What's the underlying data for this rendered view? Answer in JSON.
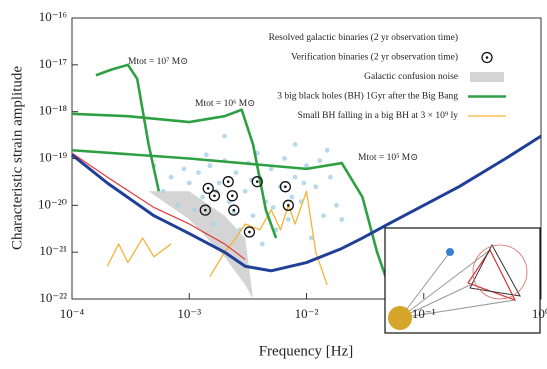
{
  "chart_data": {
    "type": "line",
    "xscale": "log",
    "yscale": "log",
    "xlabel": "Frequency [Hz]",
    "ylabel": "Characteristic strain amplitude",
    "xlim": [
      0.0001,
      1
    ],
    "ylim": [
      1e-22,
      1e-16
    ],
    "xticks": [
      {
        "value": 0.0001,
        "label": "10⁻⁴"
      },
      {
        "value": 0.001,
        "label": "10⁻³"
      },
      {
        "value": 0.01,
        "label": "10⁻²"
      },
      {
        "value": 0.1,
        "label": "10⁻¹"
      },
      {
        "value": 1,
        "label": "10⁰"
      }
    ],
    "yticks": [
      {
        "value": 1e-22,
        "label": "10⁻²²"
      },
      {
        "value": 1e-21,
        "label": "10⁻²¹"
      },
      {
        "value": 1e-20,
        "label": "10⁻²⁰"
      },
      {
        "value": 1e-19,
        "label": "10⁻¹⁹"
      },
      {
        "value": 1e-18,
        "label": "10⁻¹⁸"
      },
      {
        "value": 1e-17,
        "label": "10⁻¹⁷"
      },
      {
        "value": 1e-16,
        "label": "10⁻¹⁶"
      }
    ],
    "legend": "top-right",
    "series": [
      {
        "name": "Resolved galactic binaries (2 yr observation time)",
        "style": "scatter",
        "color": "#a9d3e6",
        "x": [
          0.0006,
          0.0007,
          0.0008,
          0.0009,
          0.001,
          0.0011,
          0.0012,
          0.0013,
          0.0015,
          0.0016,
          0.0018,
          0.002,
          0.0022,
          0.0025,
          0.0027,
          0.003,
          0.0032,
          0.0035,
          0.004,
          0.0042,
          0.0045,
          0.005,
          0.0055,
          0.006,
          0.0065,
          0.007,
          0.008,
          0.009,
          0.01,
          0.011,
          0.012,
          0.014,
          0.016,
          0.018,
          0.02,
          0.0005,
          0.0014,
          0.0038,
          0.0075,
          0.0024,
          0.0017,
          0.0034,
          0.0052,
          0.0095,
          0.013,
          0.002,
          0.008,
          0.015
        ],
        "values": [
          2e-20,
          4e-20,
          1e-20,
          6e-20,
          3e-20,
          8e-21,
          5e-20,
          1.5e-20,
          7e-20,
          4e-21,
          3e-20,
          9e-20,
          1.2e-20,
          5e-20,
          3e-21,
          2e-20,
          8e-20,
          6e-21,
          4e-20,
          1.5e-21,
          1.2e-20,
          6e-20,
          3e-21,
          2.5e-20,
          1e-19,
          5e-21,
          4e-20,
          1.2e-20,
          7e-20,
          2e-21,
          2.5e-20,
          6e-21,
          4e-20,
          1e-20,
          5e-21,
          7e-20,
          1.2e-19,
          1.3e-19,
          1.5e-20,
          7e-21,
          2e-20,
          3.5e-20,
          9e-21,
          3e-20,
          9e-20,
          3e-19,
          2e-19,
          1.5e-19
        ]
      },
      {
        "name": "Verification binaries (2 yr observation time)",
        "style": "circle-marker",
        "color": "#111111",
        "x": [
          0.00145,
          0.00164,
          0.00215,
          0.00233,
          0.0024,
          0.0038,
          0.00137,
          0.00326,
          0.0066,
          0.007
        ],
        "values": [
          2.3e-20,
          1.6e-20,
          3.2e-20,
          1.6e-20,
          7.9e-21,
          3.2e-20,
          7.9e-21,
          2.7e-21,
          2.5e-20,
          1e-20
        ]
      },
      {
        "name": "Galactic confusion noise",
        "style": "area",
        "color": "#d4d4d4",
        "x": [
          0.00045,
          0.001,
          0.002,
          0.003,
          0.0035
        ],
        "values": [
          2e-20,
          2e-20,
          6e-21,
          2e-21,
          1e-22
        ],
        "lower": [
          2e-20,
          5e-21,
          8e-22,
          2e-22,
          1e-22
        ]
      },
      {
        "name": "3 big black holes (BH) 1Gyr after the Big Bang",
        "style": "line",
        "color": "#2ea043",
        "linewidth": 2.6,
        "x": [
          0.00016,
          0.00022,
          0.0003,
          0.00036,
          0.00045,
          0.00055
        ],
        "values": [
          6e-18,
          8e-18,
          1e-17,
          5e-18,
          2e-19,
          2e-20
        ]
      },
      {
        "name": "Small BH falling in a big BH at 3 × 10⁹ ly",
        "style": "line",
        "color": "#f5b335",
        "linewidth": 1.3,
        "x": [
          0.0002,
          0.00025,
          0.0003,
          0.0004,
          0.0005,
          0.0007,
          0.001,
          0.0015,
          0.002,
          0.0025,
          0.003,
          0.004,
          0.005,
          0.006,
          0.007,
          0.008,
          0.01,
          0.012,
          0.015
        ],
        "values": [
          5e-22,
          1.5e-21,
          6e-22,
          2e-21,
          8e-22,
          1.5e-21,
          null,
          3e-22,
          1e-21,
          2e-21,
          4e-21,
          3e-21,
          8e-21,
          3e-21,
          1e-20,
          4e-21,
          2e-20,
          1e-21,
          2e-22
        ]
      },
      {
        "style": "line",
        "color": "#2ea043",
        "linewidth": 2.6,
        "x": [
          0.0001,
          0.0003,
          0.001,
          0.002,
          0.0028,
          0.0035,
          0.0045,
          0.0055
        ],
        "values": [
          9e-19,
          8e-19,
          6e-19,
          8e-19,
          1.1e-18,
          2e-19,
          8e-21,
          2e-21
        ]
      },
      {
        "style": "line",
        "color": "#2ea043",
        "linewidth": 2.6,
        "x": [
          0.0001,
          0.001,
          0.005,
          0.01,
          0.02,
          0.03,
          0.04,
          0.05
        ],
        "values": [
          1.5e-19,
          1e-19,
          7e-20,
          6e-20,
          8e-20,
          1.5e-20,
          1e-21,
          2e-22
        ]
      },
      {
        "style": "line",
        "color": "#e23b3b",
        "linewidth": 1.2,
        "x": [
          0.0001,
          0.0002,
          0.0005,
          0.001,
          0.002,
          0.003
        ],
        "values": [
          1.3e-19,
          4e-20,
          9e-21,
          4e-21,
          1.5e-21,
          7e-22
        ]
      },
      {
        "style": "line",
        "color": "#1f3f99",
        "linewidth": 3,
        "x": [
          0.0001,
          0.0002,
          0.0005,
          0.001,
          0.002,
          0.003,
          0.005,
          0.01,
          0.02,
          0.03,
          0.05,
          0.1,
          0.2,
          0.5,
          1
        ],
        "values": [
          1.2e-19,
          3e-20,
          6e-21,
          2.5e-21,
          1e-21,
          5e-22,
          4e-22,
          6e-22,
          1.2e-21,
          2e-21,
          4e-21,
          1e-20,
          2.5e-20,
          1e-19,
          3e-19
        ]
      }
    ],
    "annotations": [
      "Mtot = 10⁷ M⊙",
      "Mtot = 10⁶ M⊙",
      "Mtot = 10⁵ M⊙"
    ]
  }
}
